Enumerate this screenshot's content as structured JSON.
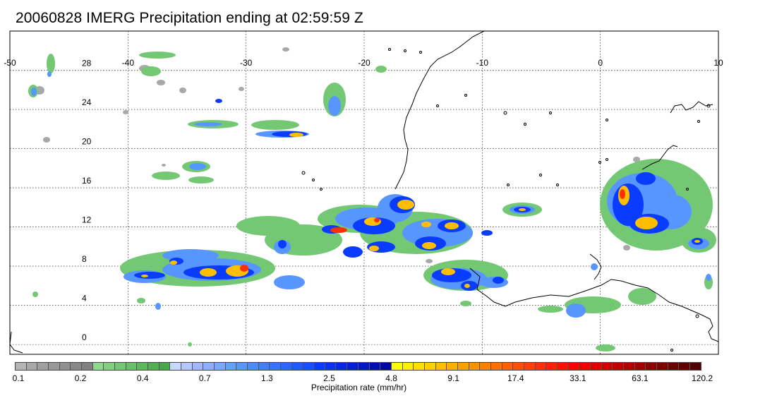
{
  "title": "20060828 IMERG Precipitation ending at 02:59:59 Z",
  "map": {
    "lon_range": [
      -50,
      10
    ],
    "lat_range": [
      -1,
      32
    ],
    "lon_ticks": [
      "-50",
      "-40",
      "-30",
      "-20",
      "-10",
      "0",
      "10"
    ],
    "lat_ticks": [
      "28",
      "24",
      "20",
      "16",
      "12",
      "8",
      "4",
      "0"
    ],
    "gridlines": true,
    "background": "#ffffff",
    "coastline_color": "#000000",
    "features": [
      "coastline West Africa",
      "precipitation bands ITCZ"
    ]
  },
  "colorbar": {
    "label": "Precipitation rate (mm/hr)",
    "tick_labels": [
      "0.1",
      "0.2",
      "0.4",
      "0.7",
      "1.3",
      "2.5",
      "4.8",
      "9.1",
      "17.4",
      "33.1",
      "63.1",
      "120.2"
    ],
    "colors": [
      "#b4b4b4",
      "#a8a8a8",
      "#a0a0a0",
      "#989898",
      "#909090",
      "#888888",
      "#808080",
      "#8ed88e",
      "#80d080",
      "#74c874",
      "#68c068",
      "#5cb85c",
      "#52b052",
      "#48a848",
      "#c8d8ff",
      "#b4c8ff",
      "#a0b8ff",
      "#8cb0ff",
      "#78a8ff",
      "#64a0ff",
      "#5896ff",
      "#4c8aff",
      "#4080ff",
      "#3474ff",
      "#2868ff",
      "#1c5cff",
      "#1450ff",
      "#0a3cff",
      "#0832f0",
      "#0628e0",
      "#0420d0",
      "#0218c0",
      "#0010b0",
      "#0008a0",
      "#ffff00",
      "#ffef00",
      "#ffdf00",
      "#ffcf00",
      "#ffbf00",
      "#ffaf00",
      "#ff9f00",
      "#ff9000",
      "#ff8000",
      "#ff7000",
      "#ff6000",
      "#ff5000",
      "#ff4000",
      "#ff3000",
      "#ff2000",
      "#ff1000",
      "#ff0000",
      "#f00000",
      "#e00000",
      "#d00000",
      "#c00000",
      "#b00000",
      "#a00000",
      "#900000",
      "#800000",
      "#700000",
      "#600000",
      "#500000"
    ]
  }
}
